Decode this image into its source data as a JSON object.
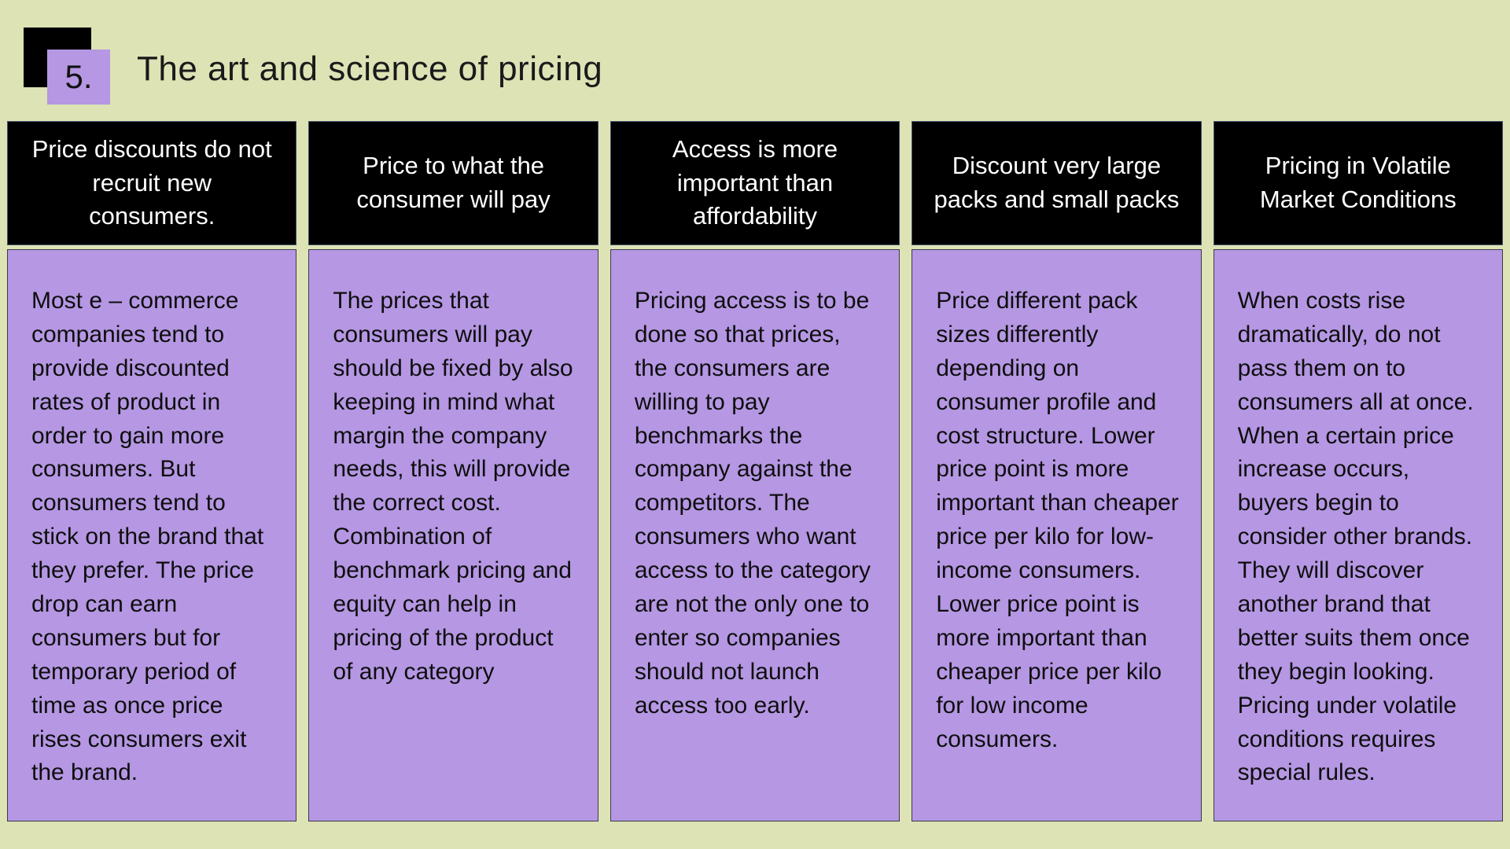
{
  "slide": {
    "badge_number": "5.",
    "title": "The art and science of pricing"
  },
  "colors": {
    "background": "#dde3b5",
    "panel_purple": "#b597e3",
    "header_black": "#000000",
    "border": "#41536b",
    "title_text": "#1a1a1a"
  },
  "columns": [
    {
      "header": "Price discounts do not recruit new consumers.",
      "body": "Most e – commerce companies tend to provide discounted rates of product in order to gain more consumers. But consumers tend to stick on the brand that they prefer. The price drop can earn consumers but for temporary period of time as once price rises consumers exit the brand."
    },
    {
      "header": "Price to what the consumer will pay",
      "body": "The prices that consumers will pay should be fixed by also keeping in mind what margin the company needs, this will provide the correct cost. Combination of benchmark pricing and equity can help in pricing of the product of any category"
    },
    {
      "header": "Access is more important than affordability",
      "body": "Pricing access is to be done so that prices, the consumers are willing to pay benchmarks the company against the competitors. The consumers who want access to the category are not the only one to enter so companies should not launch access too early."
    },
    {
      "header": "Discount very large packs and small packs",
      "body": "Price different pack sizes differently depending on consumer profile and cost structure. Lower price point is more important than cheaper price per kilo for low-income consumers. Lower price point is more important than cheaper price per kilo for low income consumers."
    },
    {
      "header": "Pricing in Volatile Market Conditions",
      "body": "When costs rise dramatically, do not pass them on to consumers all at once. When a certain price increase occurs, buyers begin to consider other brands. They will discover another brand that better suits them once they begin looking. Pricing under volatile conditions requires special rules."
    }
  ]
}
